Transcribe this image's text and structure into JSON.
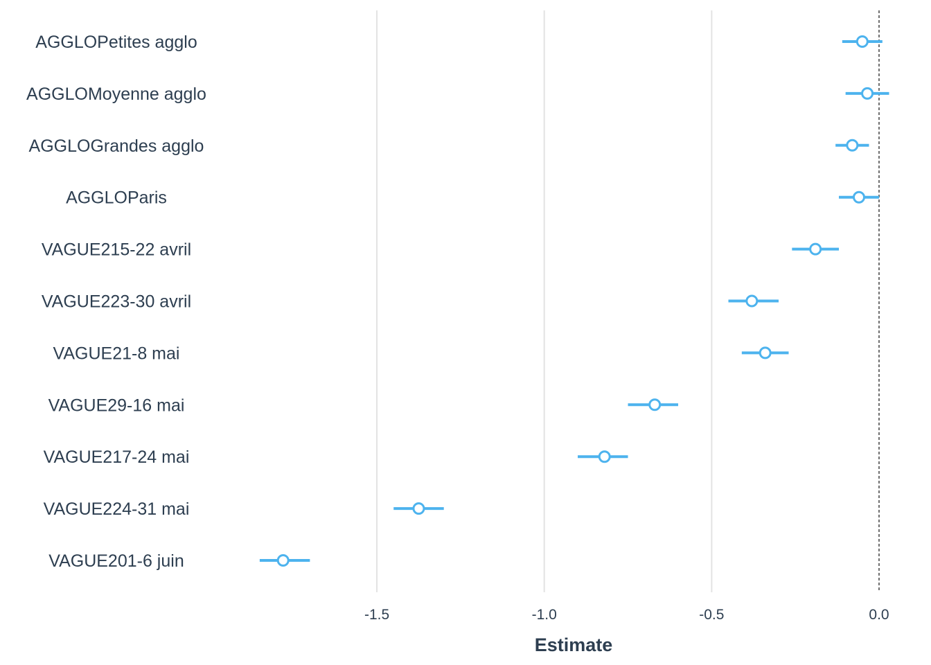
{
  "chart_data": {
    "type": "scatter",
    "title": "",
    "xlabel": "Estimate",
    "ylabel": "",
    "xlim": [
      -1.9,
      0.04
    ],
    "x_ticks": [
      -1.5,
      -1.0,
      -0.5,
      0.0
    ],
    "x_tick_labels": [
      "-1.5",
      "-1.0",
      "-0.5",
      "0.0"
    ],
    "reference_line": 0.0,
    "grid": "vertical-major",
    "legend": "none",
    "color": "#4db3ee",
    "terms": [
      {
        "label": "AGGLOPetites agglo",
        "estimate": -0.05,
        "ci_low": -0.11,
        "ci_high": 0.01
      },
      {
        "label": "AGGLOMoyenne agglo",
        "estimate": -0.035,
        "ci_low": -0.1,
        "ci_high": 0.03
      },
      {
        "label": "AGGLOGrandes agglo",
        "estimate": -0.08,
        "ci_low": -0.13,
        "ci_high": -0.03
      },
      {
        "label": "AGGLOParis",
        "estimate": -0.06,
        "ci_low": -0.12,
        "ci_high": 0.0
      },
      {
        "label": "VAGUE215-22 avril",
        "estimate": -0.19,
        "ci_low": -0.26,
        "ci_high": -0.12
      },
      {
        "label": "VAGUE223-30 avril",
        "estimate": -0.38,
        "ci_low": -0.45,
        "ci_high": -0.3
      },
      {
        "label": "VAGUE21-8 mai",
        "estimate": -0.34,
        "ci_low": -0.41,
        "ci_high": -0.27
      },
      {
        "label": "VAGUE29-16 mai",
        "estimate": -0.67,
        "ci_low": -0.75,
        "ci_high": -0.6
      },
      {
        "label": "VAGUE217-24 mai",
        "estimate": -0.82,
        "ci_low": -0.9,
        "ci_high": -0.75
      },
      {
        "label": "VAGUE224-31 mai",
        "estimate": -1.375,
        "ci_low": -1.45,
        "ci_high": -1.3
      },
      {
        "label": "VAGUE201-6 juin",
        "estimate": -1.78,
        "ci_low": -1.85,
        "ci_high": -1.7
      }
    ]
  }
}
